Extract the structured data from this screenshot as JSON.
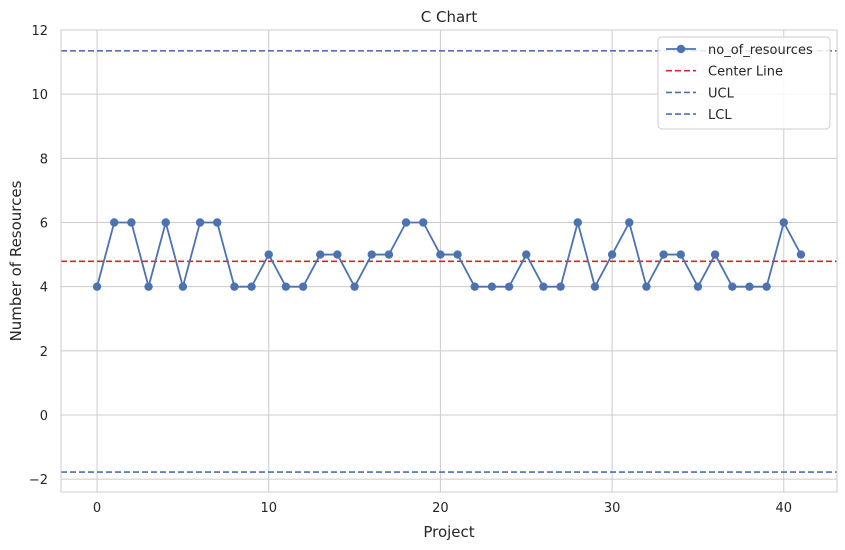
{
  "chart_data": {
    "type": "line",
    "title": "C Chart",
    "xlabel": "Project",
    "ylabel": "Number of Resources",
    "xlim": [
      -2.1,
      43.1
    ],
    "ylim": [
      -2.4,
      12
    ],
    "xticks": [
      0,
      10,
      20,
      30,
      40
    ],
    "yticks": [
      -2,
      0,
      2,
      4,
      6,
      8,
      10,
      12
    ],
    "grid": true,
    "legend_position": "top-right",
    "series": [
      {
        "name": "no_of_resources",
        "color": "#4c72b0",
        "marker": "circle",
        "x": [
          0,
          1,
          2,
          3,
          4,
          5,
          6,
          7,
          8,
          9,
          10,
          11,
          12,
          13,
          14,
          15,
          16,
          17,
          18,
          19,
          20,
          21,
          22,
          23,
          24,
          25,
          26,
          27,
          28,
          29,
          30,
          31,
          32,
          33,
          34,
          35,
          36,
          37,
          38,
          39,
          40,
          41
        ],
        "values": [
          4,
          6,
          6,
          4,
          6,
          4,
          6,
          6,
          4,
          4,
          5,
          4,
          4,
          5,
          5,
          4,
          5,
          5,
          6,
          6,
          5,
          5,
          4,
          4,
          4,
          5,
          4,
          4,
          6,
          4,
          5,
          6,
          4,
          5,
          5,
          4,
          5,
          4,
          4,
          4,
          6,
          5
        ]
      }
    ],
    "reference_lines": [
      {
        "name": "Center Line",
        "value": 4.79,
        "color": "#d62728",
        "style": "dashed"
      },
      {
        "name": "UCL",
        "value": 11.35,
        "color": "#4c72b0",
        "style": "dashed"
      },
      {
        "name": "LCL",
        "value": -1.78,
        "color": "#4c72b0",
        "style": "dashed"
      }
    ]
  }
}
